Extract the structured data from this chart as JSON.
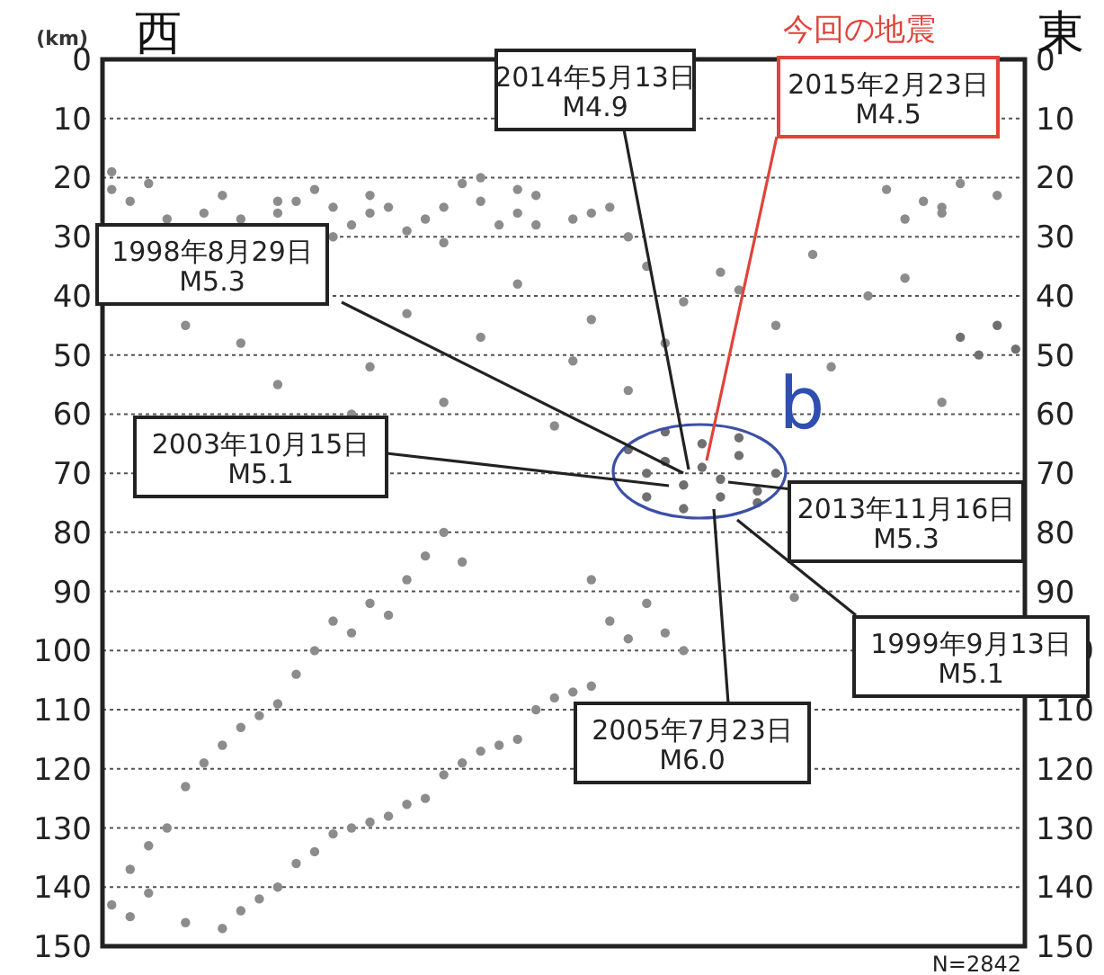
{
  "chart_data": {
    "type": "scatter",
    "ylabel": "(km)",
    "marker": "circle",
    "grid": "y",
    "categories": [
      null,
      null,
      null,
      null,
      null,
      null,
      null,
      null,
      null,
      null,
      null,
      null,
      null,
      null,
      null,
      null,
      null,
      null,
      null,
      null,
      null,
      null,
      null,
      null,
      null,
      null,
      null,
      null,
      null,
      null,
      null,
      null,
      null,
      null,
      null,
      null,
      null,
      null,
      null,
      null,
      null,
      null,
      null,
      null,
      null,
      null,
      null,
      null,
      null,
      null
    ],
    "ylim": [
      150,
      0
    ],
    "yticks": [
      0,
      10,
      20,
      30,
      40,
      50,
      60,
      70,
      80,
      90,
      100,
      110,
      120,
      130,
      140,
      150
    ],
    "y2lim": [
      150,
      0
    ],
    "y2ticks": [
      0,
      10,
      20,
      30,
      40,
      50,
      60,
      70,
      80,
      90,
      100,
      110,
      120,
      130,
      140,
      150
    ],
    "series": [
      {
        "color": "#8c8c8c",
        "values": [
          22,
          24,
          null,
          27,
          null,
          26,
          23,
          27,
          null,
          26,
          24,
          null,
          25,
          28,
          26,
          null,
          null,
          27,
          25,
          21,
          24,
          28,
          22,
          23,
          null,
          null,
          26,
          25,
          null,
          null,
          null,
          null,
          null,
          null,
          null,
          null,
          null,
          null,
          null,
          null,
          null,
          null,
          22,
          null,
          24,
          26,
          21,
          null,
          23,
          null
        ]
      },
      {
        "color": "#8c8c8c",
        "values": [
          19,
          null,
          21,
          null,
          null,
          null,
          null,
          null,
          null,
          24,
          null,
          22,
          30,
          null,
          23,
          25,
          29,
          null,
          31,
          null,
          20,
          null,
          26,
          28,
          null,
          27,
          null,
          null,
          30,
          null,
          null,
          null,
          null,
          null,
          null,
          null,
          null,
          null,
          null,
          null,
          null,
          null,
          null,
          27,
          null,
          25,
          null,
          null,
          null,
          null
        ]
      },
      {
        "color": "#8c8c8c",
        "values": [
          null,
          null,
          null,
          null,
          45,
          null,
          null,
          48,
          null,
          55,
          null,
          null,
          null,
          60,
          52,
          null,
          43,
          null,
          58,
          null,
          47,
          null,
          38,
          null,
          62,
          51,
          44,
          null,
          56,
          35,
          48,
          41,
          null,
          36,
          39,
          null,
          45,
          null,
          33,
          52,
          null,
          40,
          null,
          37,
          null,
          58,
          null,
          null,
          null,
          null
        ]
      },
      {
        "color": "#707070",
        "values": [
          null,
          null,
          null,
          null,
          null,
          null,
          null,
          null,
          null,
          null,
          null,
          null,
          null,
          null,
          null,
          null,
          null,
          null,
          null,
          null,
          null,
          null,
          null,
          null,
          null,
          null,
          null,
          null,
          66,
          70,
          68,
          72,
          69,
          71,
          67,
          73,
          70,
          null,
          null,
          null,
          null,
          null,
          null,
          null,
          null,
          null,
          null,
          null,
          null,
          null
        ]
      },
      {
        "color": "#707070",
        "values": [
          null,
          null,
          null,
          null,
          null,
          null,
          null,
          null,
          null,
          null,
          null,
          null,
          null,
          null,
          null,
          null,
          null,
          null,
          null,
          null,
          null,
          null,
          null,
          null,
          null,
          null,
          null,
          null,
          null,
          74,
          63,
          76,
          65,
          74,
          64,
          75,
          null,
          null,
          null,
          null,
          null,
          null,
          null,
          null,
          null,
          null,
          null,
          null,
          null,
          null
        ]
      },
      {
        "color": "#707070",
        "values": [
          null,
          null,
          null,
          null,
          null,
          null,
          null,
          null,
          null,
          null,
          null,
          null,
          null,
          null,
          null,
          null,
          null,
          null,
          null,
          null,
          null,
          null,
          null,
          null,
          null,
          null,
          null,
          null,
          null,
          null,
          null,
          null,
          null,
          null,
          null,
          null,
          null,
          null,
          null,
          null,
          null,
          null,
          null,
          null,
          null,
          null,
          47,
          50,
          45,
          49
        ]
      },
      {
        "color": "#8c8c8c",
        "values": [
          null,
          137,
          133,
          130,
          123,
          119,
          116,
          113,
          111,
          109,
          104,
          100,
          95,
          97,
          92,
          94,
          88,
          84,
          80,
          85,
          null,
          null,
          null,
          null,
          null,
          null,
          null,
          null,
          null,
          null,
          null,
          null,
          null,
          null,
          null,
          null,
          null,
          null,
          null,
          null,
          null,
          null,
          null,
          null,
          null,
          null,
          null,
          null,
          null,
          null
        ]
      },
      {
        "color": "#8c8c8c",
        "values": [
          143,
          145,
          141,
          null,
          146,
          null,
          147,
          144,
          142,
          140,
          136,
          134,
          131,
          130,
          129,
          128,
          126,
          125,
          121,
          119,
          117,
          116,
          115,
          110,
          108,
          107,
          106,
          null,
          null,
          null,
          null,
          null,
          null,
          null,
          null,
          null,
          null,
          null,
          null,
          null,
          null,
          null,
          null,
          null,
          null,
          null,
          null,
          null,
          null,
          null
        ]
      },
      {
        "color": "#8c8c8c",
        "values": [
          null,
          null,
          null,
          null,
          null,
          null,
          null,
          null,
          null,
          null,
          null,
          null,
          null,
          null,
          null,
          null,
          null,
          null,
          null,
          null,
          null,
          null,
          null,
          null,
          null,
          null,
          88,
          95,
          98,
          92,
          97,
          100,
          null,
          null,
          null,
          null,
          null,
          91,
          null,
          null,
          null,
          null,
          null,
          null,
          null,
          null,
          null,
          null,
          null,
          null
        ]
      }
    ],
    "annotations": [
      "1998年8月29日\nM5.3",
      "2003年10月15日\nM5.1",
      "2014年5月13日\nM4.9",
      "2015年2月23日\nM4.5",
      "2013年11月16日\nM5.3",
      "1999年9月13日\nM5.1",
      "2005年7月23日\nM6.0",
      "西",
      "東",
      "今回の地震",
      "b",
      "N=2842"
    ]
  }
}
